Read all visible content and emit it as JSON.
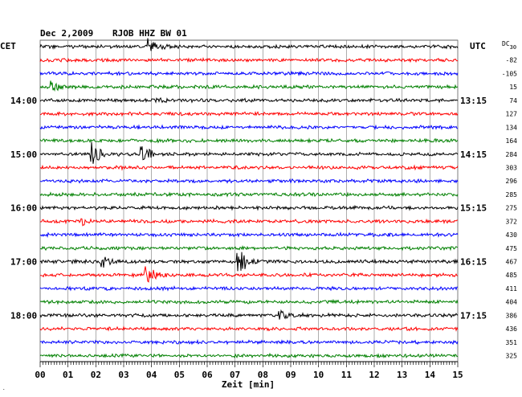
{
  "header": {
    "date": "Dec 2,2009",
    "station": "RJOB HHZ BW 01",
    "left_tz": "CET",
    "right_tz": "UTC",
    "dc_label": "DC",
    "dc_sub": "30"
  },
  "chart_data": {
    "type": "line",
    "title": "Dec 2,2009   RJOB HHZ BW 01",
    "xlabel": "Zeit [min]",
    "x_ticks": [
      "00",
      "01",
      "02",
      "03",
      "04",
      "05",
      "06",
      "07",
      "08",
      "09",
      "10",
      "11",
      "12",
      "13",
      "14",
      "15"
    ],
    "xlim": [
      0,
      15
    ],
    "grid": true,
    "trace_colors": [
      "#000000",
      "#ff0000",
      "#0000ff",
      "#008000"
    ],
    "left_hour_labels": [
      {
        "row": 4,
        "label": "14:00"
      },
      {
        "row": 8,
        "label": "15:00"
      },
      {
        "row": 12,
        "label": "16:00"
      },
      {
        "row": 16,
        "label": "17:00"
      },
      {
        "row": 20,
        "label": "18:00"
      }
    ],
    "right_hour_labels": [
      {
        "row": 4,
        "label": "13:15"
      },
      {
        "row": 8,
        "label": "14:15"
      },
      {
        "row": 12,
        "label": "15:15"
      },
      {
        "row": 16,
        "label": "16:15"
      },
      {
        "row": 20,
        "label": "17:15"
      }
    ],
    "dc_offsets": [
      "-82",
      "-105",
      "15",
      "74",
      "127",
      "134",
      "164",
      "284",
      "303",
      "296",
      "285",
      "275",
      "372",
      "430",
      "475",
      "467",
      "485",
      "411",
      "404",
      "386",
      "436",
      "351",
      "325"
    ],
    "dc_first_row": 1,
    "traces": 24,
    "events": [
      {
        "row": 0,
        "minute": 3.9,
        "amp": 1.0
      },
      {
        "row": 3,
        "minute": 0.4,
        "amp": 0.7
      },
      {
        "row": 4,
        "minute": 4.2,
        "amp": 0.35
      },
      {
        "row": 8,
        "minute": 1.85,
        "amp": 1.8
      },
      {
        "row": 8,
        "minute": 3.65,
        "amp": 1.2
      },
      {
        "row": 13,
        "minute": 1.5,
        "amp": 0.4
      },
      {
        "row": 16,
        "minute": 2.2,
        "amp": 0.8
      },
      {
        "row": 16,
        "minute": 7.1,
        "amp": 2.0
      },
      {
        "row": 17,
        "minute": 3.8,
        "amp": 1.2
      },
      {
        "row": 20,
        "minute": 8.6,
        "amp": 0.7
      }
    ]
  }
}
